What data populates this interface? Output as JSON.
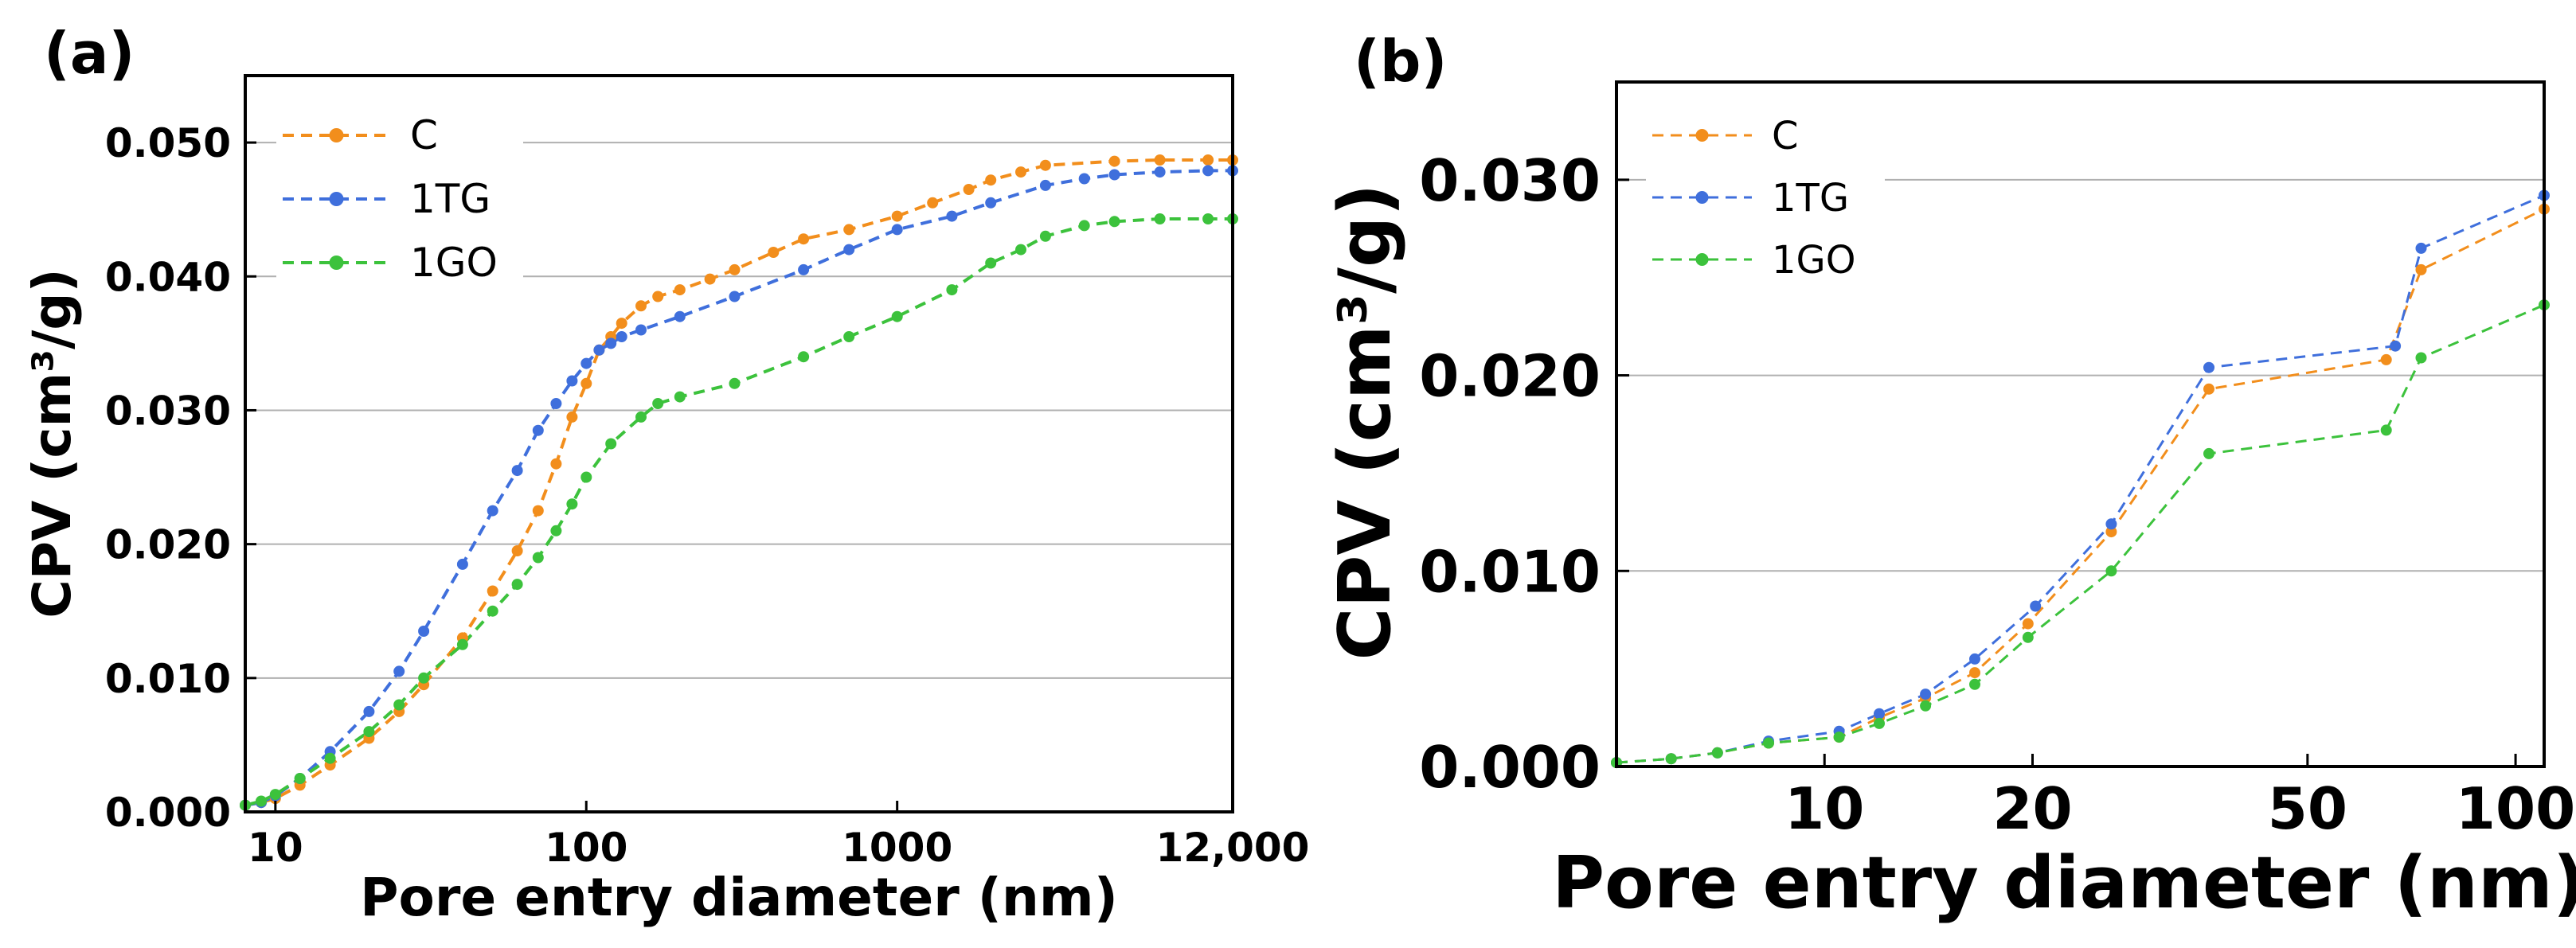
{
  "chart_data": [
    {
      "type": "line",
      "panel_label": "(a)",
      "xscale": "log",
      "xlabel": "Pore entry diameter (nm)",
      "ylabel": "CPV (cm³/g)",
      "xlim": [
        8,
        12000
      ],
      "ylim": [
        0,
        0.055
      ],
      "xticks": [
        {
          "value": 10,
          "label": "10"
        },
        {
          "value": 100,
          "label": "100"
        },
        {
          "value": 1000,
          "label": "1000"
        },
        {
          "value": 12000,
          "label": "12,000"
        }
      ],
      "yticks": [
        {
          "value": 0.0,
          "label": "0.000"
        },
        {
          "value": 0.01,
          "label": "0.010"
        },
        {
          "value": 0.02,
          "label": "0.020"
        },
        {
          "value": 0.03,
          "label": "0.030"
        },
        {
          "value": 0.04,
          "label": "0.040"
        },
        {
          "value": 0.05,
          "label": "0.050"
        }
      ],
      "grid": "horizontal",
      "legend_position": "top-left",
      "series": [
        {
          "name": "C",
          "color": "#f28e1c",
          "x": [
            8,
            9,
            10,
            12,
            15,
            20,
            25,
            30,
            40,
            50,
            60,
            70,
            80,
            90,
            100,
            110,
            120,
            130,
            150,
            170,
            200,
            250,
            300,
            400,
            500,
            700,
            1000,
            1300,
            1700,
            2000,
            2500,
            3000,
            5000,
            7000,
            10000,
            12000
          ],
          "y": [
            0.0005,
            0.0007,
            0.001,
            0.002,
            0.0035,
            0.0055,
            0.0075,
            0.0095,
            0.013,
            0.0165,
            0.0195,
            0.0225,
            0.026,
            0.0295,
            0.032,
            0.0345,
            0.0355,
            0.0365,
            0.0378,
            0.0385,
            0.039,
            0.0398,
            0.0405,
            0.0418,
            0.0428,
            0.0435,
            0.0445,
            0.0455,
            0.0465,
            0.0472,
            0.0478,
            0.0483,
            0.0486,
            0.0487,
            0.0487,
            0.0487
          ]
        },
        {
          "name": "1TG",
          "color": "#3f6fdc",
          "x": [
            8,
            9,
            10,
            12,
            15,
            20,
            25,
            30,
            40,
            50,
            60,
            70,
            80,
            90,
            100,
            110,
            120,
            130,
            150,
            200,
            300,
            500,
            700,
            1000,
            1500,
            2000,
            3000,
            4000,
            5000,
            7000,
            10000,
            12000
          ],
          "y": [
            0.0005,
            0.0007,
            0.0012,
            0.0025,
            0.0045,
            0.0075,
            0.0105,
            0.0135,
            0.0185,
            0.0225,
            0.0255,
            0.0285,
            0.0305,
            0.0322,
            0.0335,
            0.0345,
            0.035,
            0.0355,
            0.036,
            0.037,
            0.0385,
            0.0405,
            0.042,
            0.0435,
            0.0445,
            0.0455,
            0.0468,
            0.0473,
            0.0476,
            0.0478,
            0.0479,
            0.0479
          ]
        },
        {
          "name": "1GO",
          "color": "#3cc23c",
          "x": [
            8,
            9,
            10,
            12,
            15,
            20,
            25,
            30,
            40,
            50,
            60,
            70,
            80,
            90,
            100,
            120,
            150,
            170,
            200,
            300,
            500,
            700,
            1000,
            1500,
            2000,
            2500,
            3000,
            4000,
            5000,
            7000,
            10000,
            12000
          ],
          "y": [
            0.0005,
            0.0008,
            0.0013,
            0.0025,
            0.004,
            0.006,
            0.008,
            0.01,
            0.0125,
            0.015,
            0.017,
            0.019,
            0.021,
            0.023,
            0.025,
            0.0275,
            0.0295,
            0.0305,
            0.031,
            0.032,
            0.034,
            0.0355,
            0.037,
            0.039,
            0.041,
            0.042,
            0.043,
            0.0438,
            0.0441,
            0.0443,
            0.0443,
            0.0443
          ]
        }
      ]
    },
    {
      "type": "line",
      "panel_label": "(b)",
      "xscale": "log",
      "xlabel": "Pore entry diameter (nm)",
      "ylabel": "CPV (cm³/g)",
      "xlim": [
        5,
        110
      ],
      "ylim": [
        0,
        0.035
      ],
      "xticks": [
        {
          "value": 10,
          "label": "10"
        },
        {
          "value": 20,
          "label": "20"
        },
        {
          "value": 50,
          "label": "50"
        },
        {
          "value": 100,
          "label": "100"
        }
      ],
      "yticks": [
        {
          "value": 0.0,
          "label": "0.000"
        },
        {
          "value": 0.01,
          "label": "0.010"
        },
        {
          "value": 0.02,
          "label": "0.020"
        },
        {
          "value": 0.03,
          "label": "0.030"
        }
      ],
      "grid": "horizontal",
      "legend_position": "top-left",
      "series": [
        {
          "name": "C",
          "color": "#f28e1c",
          "x": [
            5,
            6,
            7,
            8.3,
            10.5,
            12,
            14,
            16.5,
            19.7,
            26,
            36,
            65,
            73,
            110
          ],
          "y": [
            0.0002,
            0.0004,
            0.0007,
            0.0012,
            0.0015,
            0.0025,
            0.0035,
            0.0048,
            0.0073,
            0.012,
            0.0193,
            0.0208,
            0.0254,
            0.0285
          ]
        },
        {
          "name": "1TG",
          "color": "#3f6fdc",
          "x": [
            5,
            6,
            7,
            8.3,
            10.5,
            12,
            14,
            16.5,
            20.2,
            26,
            36,
            67,
            73,
            110
          ],
          "y": [
            0.0002,
            0.0004,
            0.0007,
            0.0013,
            0.0018,
            0.0027,
            0.0037,
            0.0055,
            0.0082,
            0.0124,
            0.0204,
            0.0215,
            0.0265,
            0.0292
          ]
        },
        {
          "name": "1GO",
          "color": "#3cc23c",
          "x": [
            5,
            6,
            7,
            8.3,
            10.5,
            12,
            14,
            16.5,
            19.7,
            26,
            36,
            65,
            73,
            110
          ],
          "y": [
            0.0002,
            0.0004,
            0.0007,
            0.0012,
            0.0015,
            0.0022,
            0.0031,
            0.0042,
            0.0066,
            0.01,
            0.016,
            0.0172,
            0.0209,
            0.0236
          ]
        }
      ]
    }
  ]
}
